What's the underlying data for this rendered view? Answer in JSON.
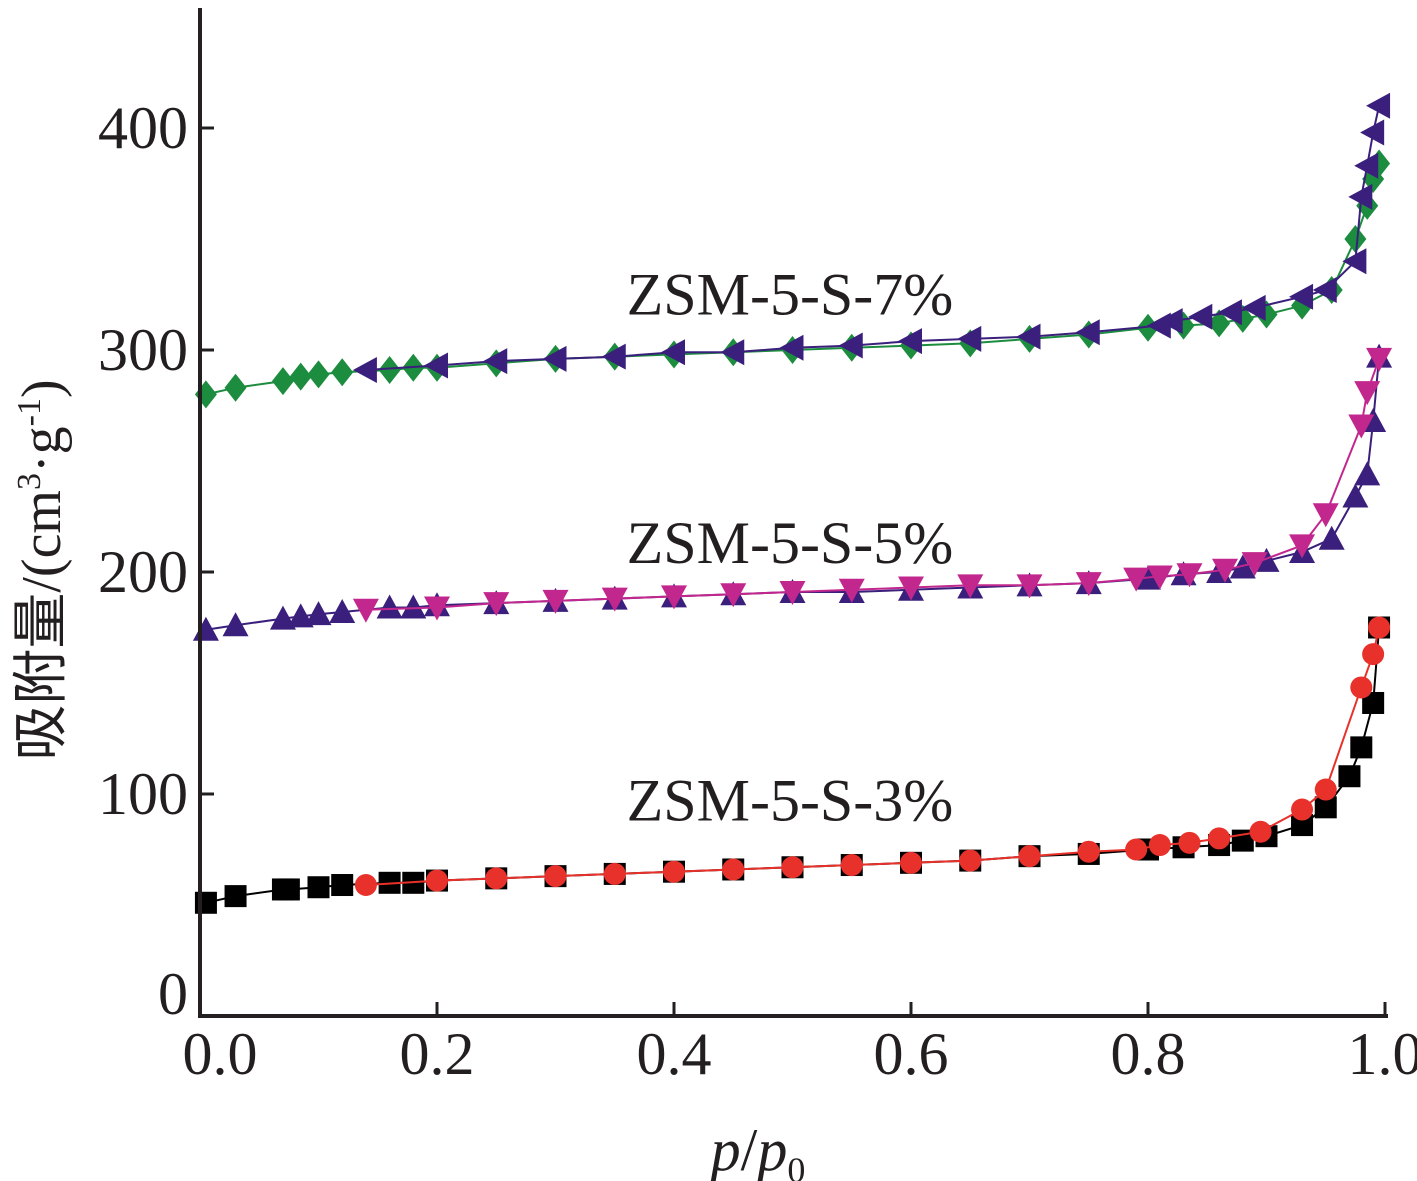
{
  "chart_data": {
    "type": "line",
    "xlabel": {
      "p": "p",
      "slash": "/",
      "p0": "p",
      "sub0": "0"
    },
    "ylabel": {
      "main": "吸附量/(cm",
      "sup3": "3",
      "mid": "·g",
      "supm1": "-1",
      "end": ")"
    },
    "xlim": [
      0,
      1.0
    ],
    "ylim": [
      0,
      450
    ],
    "xticks": [
      "0.0",
      "0.2",
      "0.4",
      "0.6",
      "0.8",
      "1.0"
    ],
    "yticks": [
      "0",
      "100",
      "200",
      "300",
      "400"
    ],
    "labels": [
      {
        "text": "ZSM-5-S-7%",
        "x": 0.36,
        "y": 325
      },
      {
        "text": "ZSM-5-S-5%",
        "x": 0.36,
        "y": 213
      },
      {
        "text": "ZSM-5-S-3%",
        "x": 0.36,
        "y": 97
      }
    ],
    "series": [
      {
        "group": "ZSM-5-S-3%",
        "role": "adsorption",
        "color": "#000000",
        "marker": "square",
        "x": [
          0.005,
          0.03,
          0.07,
          0.075,
          0.1,
          0.12,
          0.16,
          0.18,
          0.2,
          0.25,
          0.3,
          0.35,
          0.4,
          0.45,
          0.5,
          0.55,
          0.6,
          0.65,
          0.7,
          0.75,
          0.8,
          0.83,
          0.86,
          0.88,
          0.9,
          0.93,
          0.95,
          0.97,
          0.98,
          0.99,
          0.995
        ],
        "y": [
          51,
          54,
          57,
          57,
          58,
          59,
          60,
          60,
          61,
          62,
          63,
          64,
          65,
          66,
          67,
          68,
          69,
          70,
          72,
          73,
          75,
          76,
          77,
          79,
          81,
          86,
          94,
          108,
          121,
          141,
          175
        ]
      },
      {
        "group": "ZSM-5-S-3%",
        "role": "desorption",
        "color": "#e8312a",
        "marker": "circle",
        "x": [
          0.995,
          0.99,
          0.98,
          0.95,
          0.93,
          0.895,
          0.86,
          0.835,
          0.81,
          0.79,
          0.75,
          0.7,
          0.65,
          0.6,
          0.55,
          0.5,
          0.45,
          0.4,
          0.35,
          0.3,
          0.25,
          0.2,
          0.14
        ],
        "y": [
          175,
          163,
          148,
          102,
          93,
          83,
          80,
          78,
          77,
          75,
          74,
          72,
          70,
          69,
          68,
          67,
          66,
          65,
          64,
          63,
          62,
          61,
          59
        ]
      },
      {
        "group": "ZSM-5-S-5%",
        "role": "adsorption",
        "color": "#3b1f7c",
        "marker": "triangle-up",
        "x": [
          0.005,
          0.03,
          0.07,
          0.085,
          0.1,
          0.12,
          0.16,
          0.18,
          0.2,
          0.25,
          0.3,
          0.35,
          0.4,
          0.45,
          0.5,
          0.55,
          0.6,
          0.65,
          0.7,
          0.75,
          0.8,
          0.83,
          0.86,
          0.88,
          0.9,
          0.93,
          0.955,
          0.975,
          0.985,
          0.99,
          0.995
        ],
        "y": [
          174,
          176,
          179,
          180,
          181,
          182,
          184,
          184,
          185,
          186,
          187,
          188,
          189,
          190,
          191,
          191,
          192,
          193,
          194,
          195,
          197,
          199,
          200,
          202,
          205,
          209,
          215,
          234,
          244,
          268,
          297
        ]
      },
      {
        "group": "ZSM-5-S-5%",
        "role": "desorption",
        "color": "#c2278e",
        "marker": "triangle-down",
        "x": [
          0.995,
          0.985,
          0.98,
          0.95,
          0.93,
          0.89,
          0.865,
          0.835,
          0.81,
          0.79,
          0.75,
          0.7,
          0.65,
          0.6,
          0.55,
          0.5,
          0.45,
          0.4,
          0.35,
          0.3,
          0.25,
          0.2,
          0.14
        ],
        "y": [
          296,
          281,
          266,
          226,
          212,
          204,
          201,
          199,
          198,
          197,
          195,
          194,
          194,
          193,
          192,
          191,
          190,
          189,
          188,
          187,
          186,
          184,
          183
        ]
      },
      {
        "group": "ZSM-5-S-7%",
        "role": "adsorption",
        "color": "#1c8c3e",
        "marker": "diamond",
        "x": [
          0.005,
          0.03,
          0.07,
          0.085,
          0.1,
          0.12,
          0.16,
          0.18,
          0.2,
          0.25,
          0.3,
          0.35,
          0.4,
          0.45,
          0.5,
          0.55,
          0.6,
          0.65,
          0.7,
          0.75,
          0.8,
          0.83,
          0.86,
          0.88,
          0.9,
          0.93,
          0.955,
          0.975,
          0.985,
          0.99,
          0.995
        ],
        "y": [
          280,
          283,
          286,
          288,
          289,
          290,
          291,
          292,
          292,
          294,
          296,
          297,
          298,
          299,
          300,
          301,
          302,
          303,
          305,
          307,
          310,
          311,
          312,
          314,
          316,
          320,
          327,
          350,
          365,
          377,
          384
        ]
      },
      {
        "group": "ZSM-5-S-7%",
        "role": "desorption",
        "color": "#3b1f7c",
        "marker": "triangle-left",
        "x": [
          0.995,
          0.99,
          0.985,
          0.98,
          0.975,
          0.95,
          0.93,
          0.89,
          0.87,
          0.845,
          0.82,
          0.81,
          0.75,
          0.7,
          0.65,
          0.6,
          0.55,
          0.5,
          0.45,
          0.4,
          0.35,
          0.3,
          0.25,
          0.2,
          0.14
        ],
        "y": [
          410,
          398,
          383,
          369,
          340,
          327,
          324,
          319,
          317,
          315,
          313,
          311,
          308,
          306,
          305,
          304,
          302,
          301,
          299,
          299,
          297,
          296,
          295,
          293,
          291
        ]
      }
    ]
  }
}
